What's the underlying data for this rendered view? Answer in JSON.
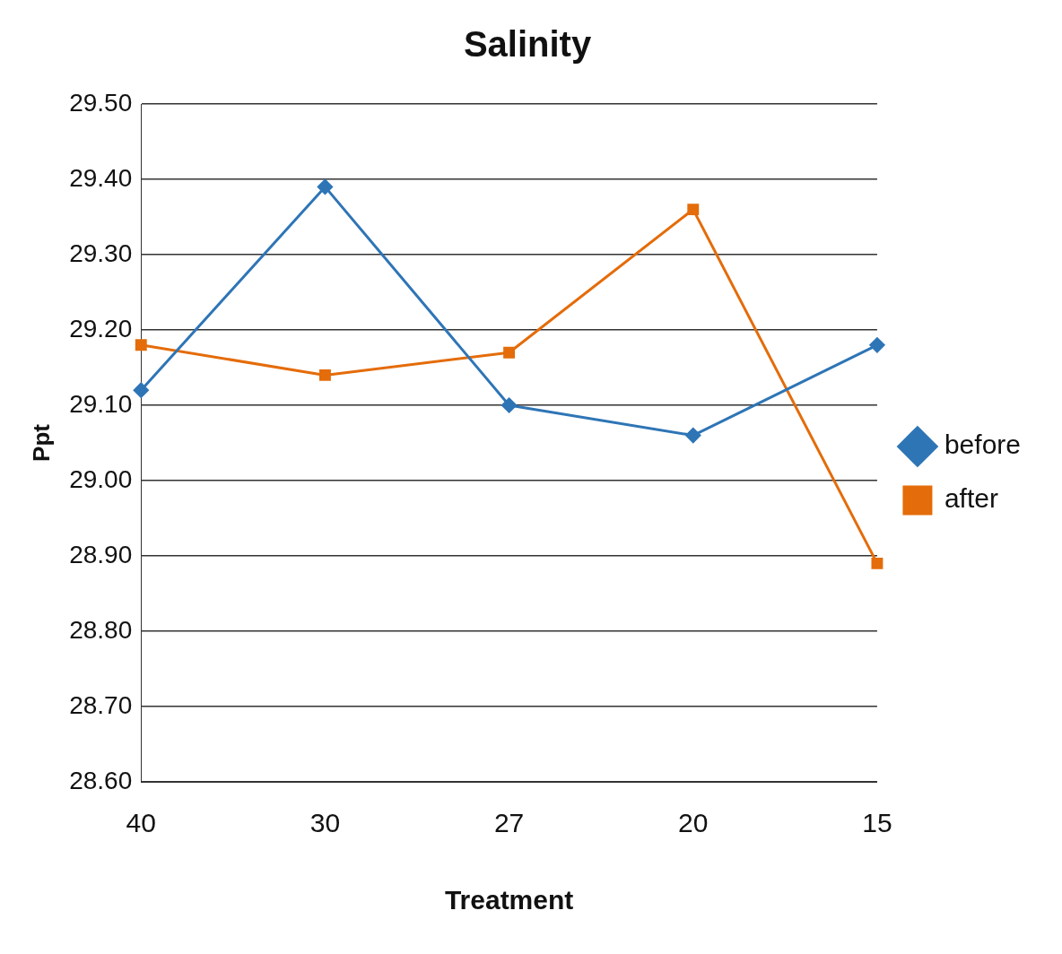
{
  "chart_data": {
    "type": "line",
    "title": "Salinity",
    "xlabel": "Treatment",
    "ylabel": "Ppt",
    "categories": [
      "40",
      "30",
      "27",
      "20",
      "15"
    ],
    "series": [
      {
        "name": "before",
        "color": "#2e75b6",
        "marker": "diamond",
        "values": [
          29.12,
          29.39,
          29.1,
          29.06,
          29.18
        ]
      },
      {
        "name": "after",
        "color": "#e46c0a",
        "marker": "square",
        "values": [
          29.18,
          29.14,
          29.17,
          29.36,
          28.89
        ]
      }
    ],
    "ylim": [
      28.6,
      29.5
    ],
    "yticks": [
      {
        "value": 28.6,
        "label": "28.60"
      },
      {
        "value": 28.7,
        "label": "28.70"
      },
      {
        "value": 28.8,
        "label": "28.80"
      },
      {
        "value": 28.9,
        "label": "28.90"
      },
      {
        "value": 29.0,
        "label": "29.00"
      },
      {
        "value": 29.1,
        "label": "29.10"
      },
      {
        "value": 29.2,
        "label": "29.20"
      },
      {
        "value": 29.3,
        "label": "29.30"
      },
      {
        "value": 29.4,
        "label": "29.40"
      },
      {
        "value": 29.5,
        "label": "29.50"
      }
    ],
    "grid": "y",
    "legend": "right",
    "line_style": "solid"
  }
}
